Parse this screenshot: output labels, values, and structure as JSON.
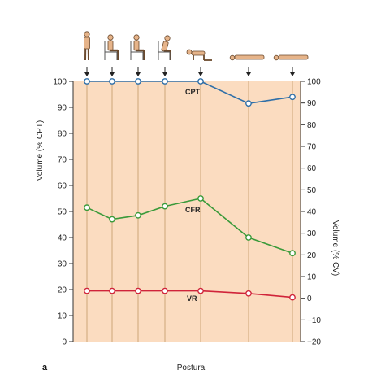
{
  "chart_data": {
    "type": "line",
    "panel_label": "a",
    "xlabel": "Postura",
    "ylabel_left": "Volume (% CPT)",
    "ylabel_right": "Volume (% CV)",
    "ylim_left": [
      0,
      100
    ],
    "ylim_right": [
      -20,
      100
    ],
    "left_ticks": [
      0,
      10,
      20,
      30,
      40,
      50,
      60,
      70,
      80,
      90,
      100
    ],
    "right_ticks": [
      -20,
      -10,
      0,
      10,
      20,
      30,
      40,
      50,
      60,
      70,
      80,
      90,
      100
    ],
    "postures": [
      "standing-figure-icon",
      "sitting-figure-icon",
      "sitting-figure-icon",
      "sitting-leaning-figure-icon",
      "kneeling-figure-icon",
      "lying-prone-figure-icon",
      "lying-supine-figure-icon"
    ],
    "series": [
      {
        "name": "CPT",
        "color": "#2f6fa8",
        "values": [
          100,
          100,
          100,
          100,
          100,
          91.5,
          94
        ]
      },
      {
        "name": "CFR",
        "color": "#3a9a3a",
        "values": [
          51.5,
          47,
          48.5,
          52,
          55,
          40,
          34
        ]
      },
      {
        "name": "VR",
        "color": "#d0243a",
        "values": [
          19.5,
          19.5,
          19.5,
          19.5,
          19.5,
          18.5,
          17
        ]
      }
    ],
    "background_color": "#fbdcc0",
    "gridline_color": "#c8a070"
  }
}
